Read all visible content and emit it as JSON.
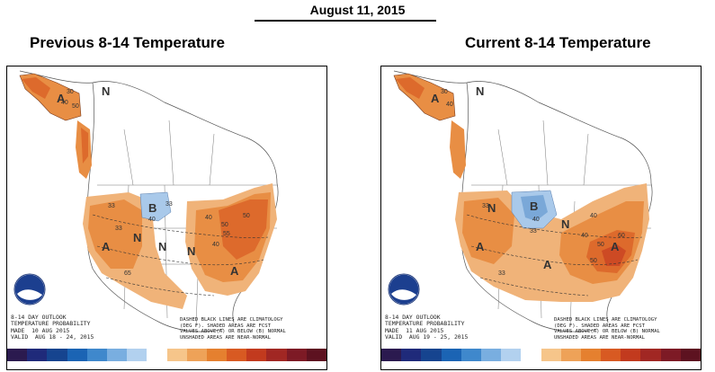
{
  "date": "August 11, 2015",
  "left": {
    "title": "Previous 8-14 Temperature",
    "outlook": [
      "8-14 DAY OUTLOOK",
      "TEMPERATURE PROBABILITY",
      "MADE  10 AUG 2015",
      "VALID  AUG 18 - 24, 2015"
    ],
    "note": [
      "DASHED BLACK LINES ARE CLIMATOLOGY",
      "(DEG F). SHADED AREAS ARE FCST",
      "VALUES ABOVE(A) OR BELOW (B) NORMAL",
      "UNSHADED AREAS ARE NEAR-NORMAL"
    ],
    "labels": [
      {
        "t": "N",
        "k": "N"
      },
      {
        "t": "A",
        "k": "A"
      },
      {
        "t": "B",
        "k": "B"
      },
      {
        "t": "N",
        "k": "N"
      },
      {
        "t": "N",
        "k": "N"
      },
      {
        "t": "A",
        "k": "A"
      },
      {
        "t": "A",
        "k": "A"
      },
      {
        "t": "N",
        "k": "N"
      }
    ],
    "numbers": [
      "30",
      "40",
      "50",
      "33",
      "40",
      "40",
      "50",
      "55",
      "65",
      "33",
      "40",
      "50",
      "33"
    ]
  },
  "right": {
    "title": "Current 8-14 Temperature",
    "outlook": [
      "8-14 DAY OUTLOOK",
      "TEMPERATURE PROBABILITY",
      "MADE  11 AUG 2015",
      "VALID  AUG 19 - 25, 2015"
    ],
    "note": [
      "DASHED BLACK LINES ARE CLIMATOLOGY",
      "(DEG F). SHADED AREAS ARE FCST",
      "VALUES ABOVE(A) OR BELOW (B) NORMAL",
      "UNSHADED AREAS ARE NEAR-NORMAL"
    ],
    "labels": [
      {
        "t": "N",
        "k": "N"
      },
      {
        "t": "A",
        "k": "A"
      },
      {
        "t": "B",
        "k": "B"
      },
      {
        "t": "N",
        "k": "N"
      },
      {
        "t": "A",
        "k": "A"
      },
      {
        "t": "A",
        "k": "A"
      },
      {
        "t": "A",
        "k": "A"
      },
      {
        "t": "N",
        "k": "N"
      }
    ],
    "numbers": [
      "30",
      "40",
      "33",
      "40",
      "40",
      "33",
      "50",
      "60",
      "40",
      "50",
      "33"
    ]
  },
  "colors": {
    "scale": [
      "#2b1a4f",
      "#1f2a7a",
      "#16448f",
      "#1b64b4",
      "#3f88cc",
      "#79aee0",
      "#b2d1ef",
      "#ffffff",
      "#f6c58a",
      "#eea258",
      "#e5802f",
      "#d85a22",
      "#c23a1e",
      "#a12723",
      "#7d1a25",
      "#5d1220"
    ],
    "a33": "#f0b379",
    "a40": "#e88e44",
    "a50": "#dd6a2c",
    "a60": "#cd4a24",
    "b33": "#a9c9ea",
    "b40": "#7aa8d8"
  }
}
